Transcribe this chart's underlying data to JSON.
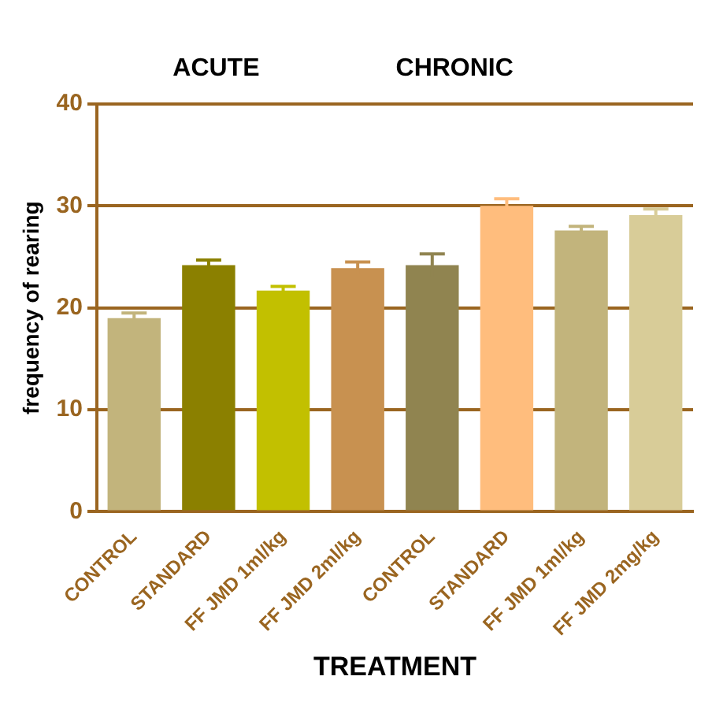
{
  "chart_data": {
    "type": "bar",
    "xlabel": "TREATMENT",
    "ylabel": "frequency of rearing",
    "annotations": [
      "ACUTE",
      "CHRONIC"
    ],
    "categories": [
      "CONTROL",
      "STANDARD",
      "FF JMD 1ml/kg",
      "FF JMD 2ml/kg",
      "CONTROL",
      "STANDARD",
      "FF JMD 1ml/kg",
      "FF JMD 2mg/kg"
    ],
    "values": [
      19.0,
      24.2,
      21.7,
      23.9,
      24.2,
      30.0,
      27.6,
      29.1
    ],
    "errors": [
      0.5,
      0.5,
      0.4,
      0.6,
      1.1,
      0.7,
      0.4,
      0.6
    ],
    "colors": [
      "#c2b47c",
      "#8b8000",
      "#c2c000",
      "#c89150",
      "#908450",
      "#ffbd7d",
      "#c2b47c",
      "#d8cc98"
    ],
    "ylim": [
      0,
      40
    ],
    "yticks": [
      0,
      10,
      20,
      30,
      40
    ],
    "grid": "y"
  }
}
